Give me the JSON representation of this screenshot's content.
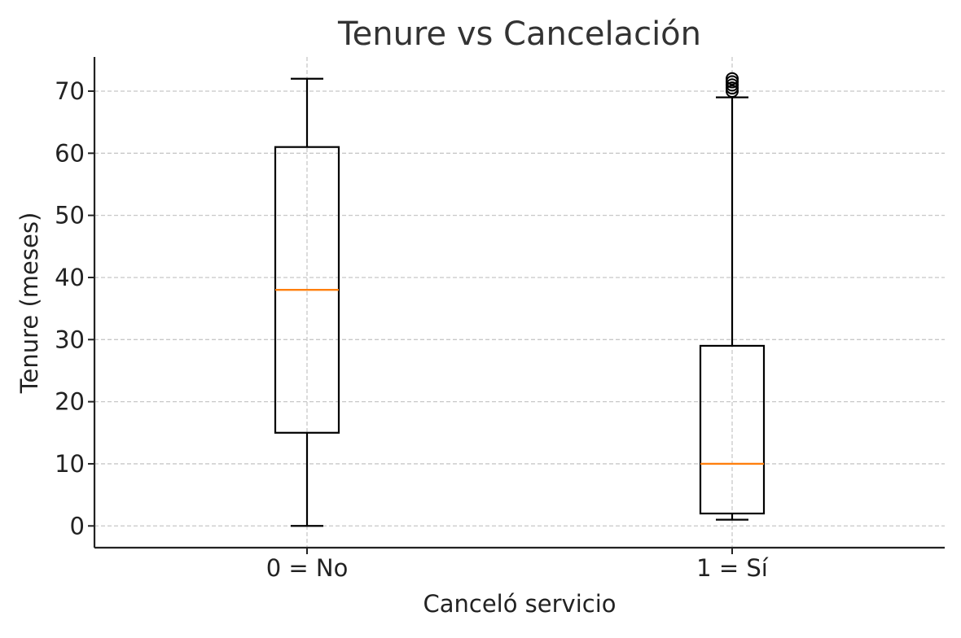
{
  "chart_data": {
    "type": "box",
    "title": "Tenure vs Cancelación",
    "xlabel": "Canceló servicio",
    "ylabel": "Tenure (meses)",
    "ylim": [
      -3.5,
      75.5
    ],
    "yticks": [
      0,
      10,
      20,
      30,
      40,
      50,
      60,
      70
    ],
    "grid": true,
    "categories": [
      "0 = No",
      "1 = Sí"
    ],
    "boxes": [
      {
        "category": "0 = No",
        "whisker_low": 0,
        "q1": 15,
        "median": 38,
        "q3": 61,
        "whisker_high": 72,
        "outliers": []
      },
      {
        "category": "1 = Sí",
        "whisker_low": 1,
        "q1": 2,
        "median": 10,
        "q3": 29,
        "whisker_high": 69,
        "outliers": [
          70,
          70.5,
          71,
          71.5,
          72
        ]
      }
    ],
    "colors": {
      "box": "#000000",
      "median": "#ff7f0e",
      "grid": "#c8c8c8",
      "axis": "#222222",
      "text": "#222222",
      "title": "#333333"
    }
  }
}
